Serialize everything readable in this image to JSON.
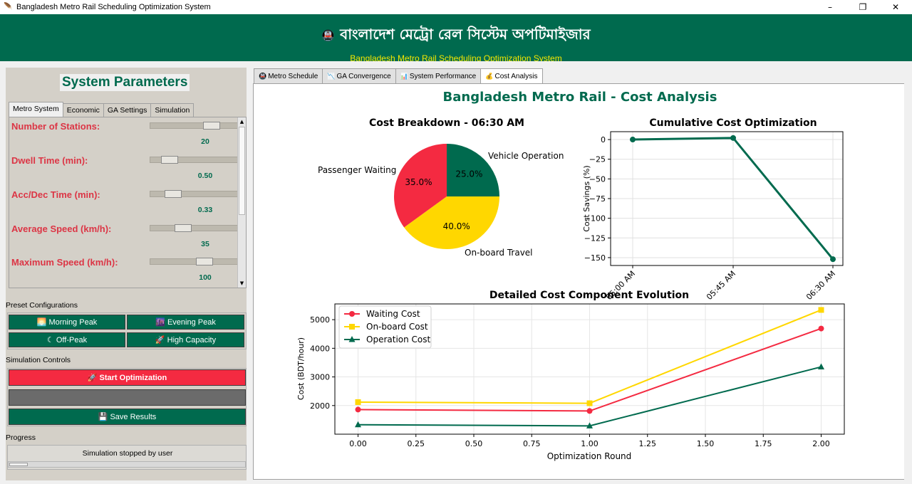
{
  "window": {
    "title": "Bangladesh Metro Rail Scheduling Optimization System",
    "minimize": "–",
    "maximize": "❐",
    "close": "✕"
  },
  "header": {
    "title_bn": "বাংলাদেশ মেট্রো রেল সিস্টেম অপটিমাইজার",
    "icon": "train-icon",
    "title_en": "Bangladesh Metro Rail Scheduling Optimization System"
  },
  "left": {
    "title": "System Parameters",
    "tabs": [
      "Metro System",
      "Economic",
      "GA Settings",
      "Simulation"
    ],
    "params": [
      {
        "label": "Number of Stations:",
        "value": "20",
        "level": 0.75
      },
      {
        "label": "Dwell Time (min):",
        "value": "0.50",
        "level": 0.15
      },
      {
        "label": "Acc/Dec Time (min):",
        "value": "0.33",
        "level": 0.2
      },
      {
        "label": "Average Speed (km/h):",
        "value": "35",
        "level": 0.35
      },
      {
        "label": "Maximum Speed (km/h):",
        "value": "100",
        "level": 0.65
      }
    ],
    "preset_title": "Preset Configurations",
    "presets": [
      "Morning Peak",
      "Evening Peak",
      "Off-Peak",
      "High Capacity"
    ],
    "controls_title": "Simulation Controls",
    "start_label": "Start Optimization",
    "stop_label": "",
    "save_label": "Save Results",
    "progress_title": "Progress",
    "progress_status": "Simulation stopped by user",
    "progress_fraction": 0.08
  },
  "tabs": [
    "Metro Schedule",
    "GA Convergence",
    "System Performance",
    "Cost Analysis"
  ],
  "colors": {
    "green": "#006a4e",
    "red": "#f42a41",
    "yellow": "#ffd700"
  },
  "chart_data": [
    {
      "type": "pie",
      "title": "Cost Breakdown - 06:30 AM",
      "labels": [
        "Vehicle Operation",
        "On-board Travel",
        "Passenger Waiting"
      ],
      "values": [
        25.0,
        40.0,
        35.0
      ],
      "value_labels": [
        "25.0%",
        "40.0%",
        "35.0%"
      ],
      "colors": [
        "#006a4e",
        "#ffd700",
        "#f42a41"
      ]
    },
    {
      "type": "line",
      "title": "Cumulative Cost Optimization",
      "x": [
        "05:00 AM",
        "05:45 AM",
        "06:30 AM"
      ],
      "y": [
        0,
        2,
        -152
      ],
      "ylabel": "Cost Savings (%)",
      "ylim": [
        -160,
        10
      ],
      "yticks": [
        "0",
        "−25",
        "−50",
        "−75",
        "−100",
        "−125",
        "−150"
      ],
      "ytick_values": [
        0,
        -25,
        -50,
        -75,
        -100,
        -125,
        -150
      ],
      "grid": true
    },
    {
      "type": "line",
      "title": "Detailed Cost Component Evolution",
      "xlabel": "Optimization Round",
      "ylabel": "Cost (BDT/hour)",
      "x": [
        0,
        1,
        2
      ],
      "xticks": [
        "0.00",
        "0.25",
        "0.50",
        "0.75",
        "1.00",
        "1.25",
        "1.50",
        "1.75",
        "2.00"
      ],
      "yticks": [
        "2000",
        "3000",
        "4000",
        "5000"
      ],
      "xlim": [
        -0.1,
        2.1
      ],
      "ylim": [
        1000,
        5550
      ],
      "grid": true,
      "legend": "top-left",
      "series": [
        {
          "name": "Waiting Cost",
          "values": [
            1860,
            1810,
            4690
          ],
          "color": "#f42a41",
          "marker": "circle"
        },
        {
          "name": "On-board Cost",
          "values": [
            2120,
            2080,
            5340
          ],
          "color": "#ffd700",
          "marker": "square"
        },
        {
          "name": "Operation Cost",
          "values": [
            1330,
            1290,
            3350
          ],
          "color": "#006a4e",
          "marker": "triangle"
        }
      ]
    }
  ],
  "content_title": "Bangladesh Metro Rail - Cost Analysis"
}
